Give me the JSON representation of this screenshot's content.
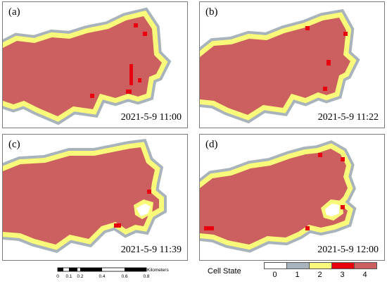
{
  "panels": [
    {
      "label": "(a)",
      "timestamp": "2021-5-9  11:00"
    },
    {
      "label": "(b)",
      "timestamp": "2021-5-9  11:22"
    },
    {
      "label": "(c)",
      "timestamp": "2021-5-9  11:39"
    },
    {
      "label": "(d)",
      "timestamp": "2021-5-9  12:00"
    }
  ],
  "scale_bar": {
    "ticks": [
      "0",
      "0.1",
      "0.2",
      "0.4",
      "0.6",
      "0.8"
    ],
    "unit": "Kilometers"
  },
  "legend": {
    "title": "Cell State",
    "items": [
      {
        "label": "0",
        "color": "#ffffff"
      },
      {
        "label": "1",
        "color": "#a8b3bc"
      },
      {
        "label": "2",
        "color": "#fafa7a"
      },
      {
        "label": "3",
        "color": "#e8000e"
      },
      {
        "label": "4",
        "color": "#cc6060"
      }
    ]
  }
}
